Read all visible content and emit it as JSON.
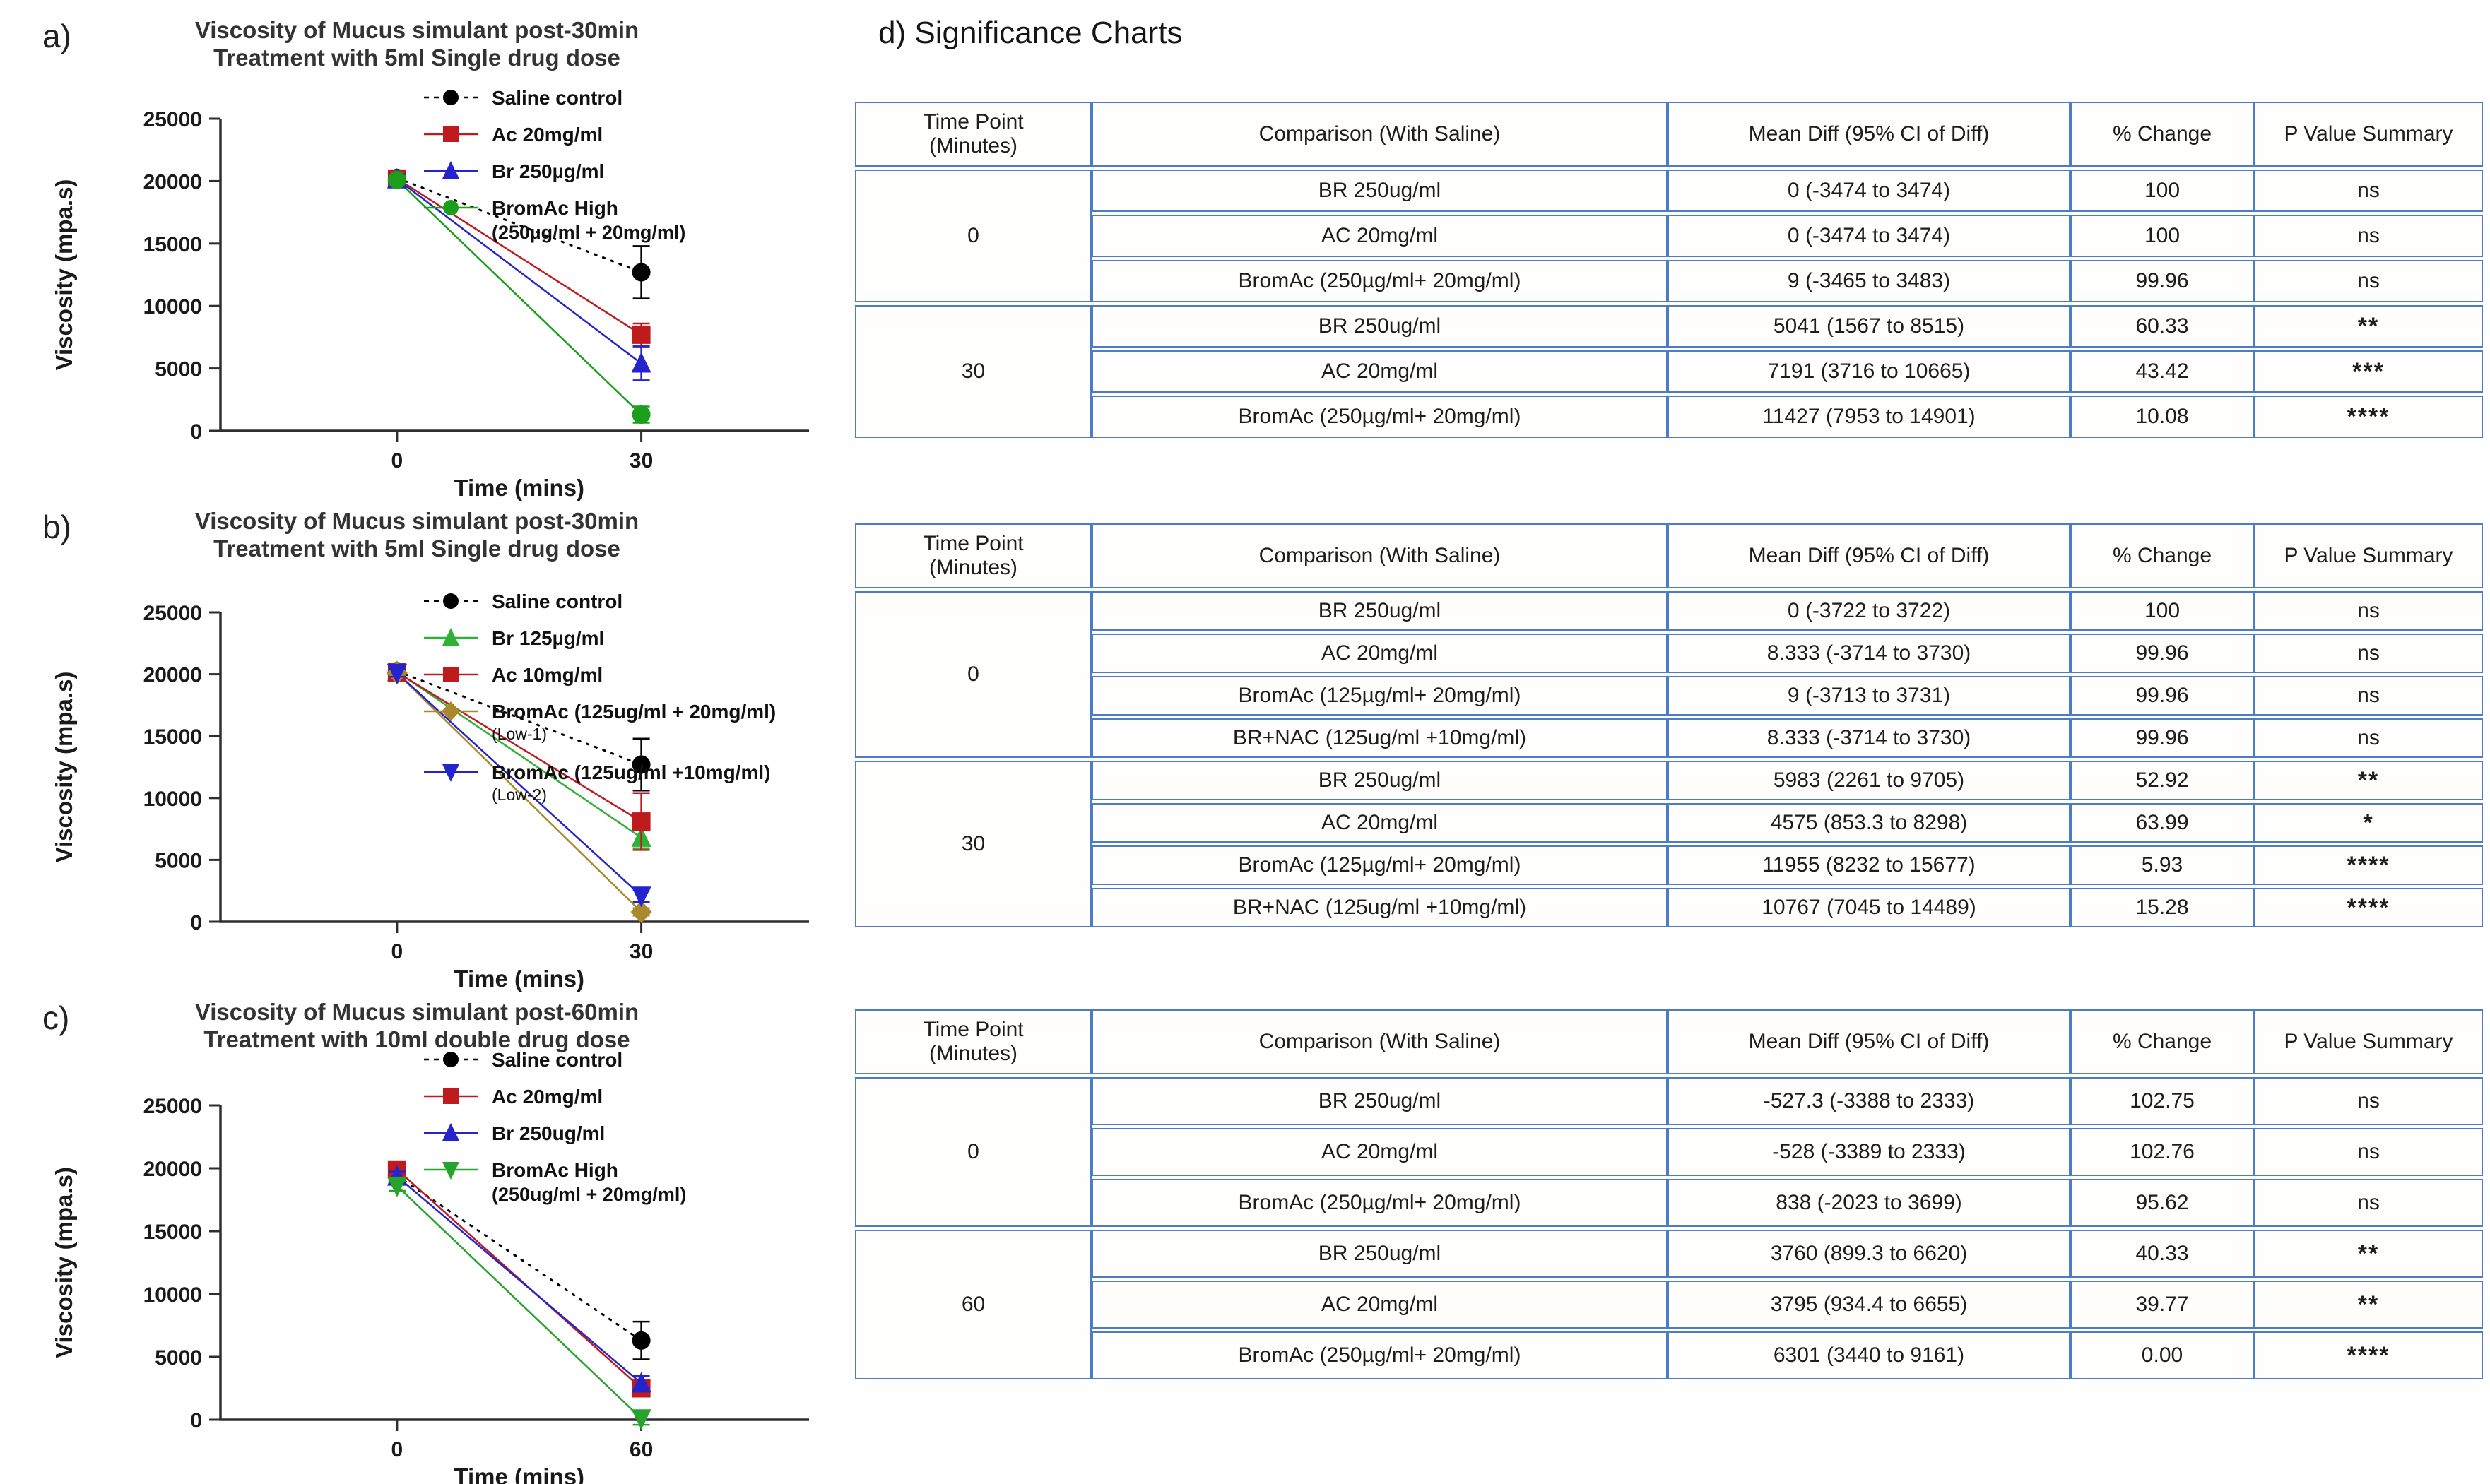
{
  "significance": {
    "heading": "d) Significance Charts"
  },
  "chart_data": {
    "charts": [
      {
        "type": "line",
        "panel_label": "a)",
        "title": [
          "Viscosity of Mucus simulant post-30min",
          "Treatment with 5ml Single drug dose"
        ],
        "ylabel": "Viscosity (mpa.s)",
        "xlabel": "Time (mins)",
        "ylim": [
          0,
          25000
        ],
        "yticks": [
          0,
          5000,
          10000,
          15000,
          20000,
          25000
        ],
        "xticks": [
          "0",
          "30"
        ],
        "grid": false,
        "legend_position": "top-right-inside",
        "series": [
          {
            "name": [
              "Saline control"
            ],
            "color": "#000000",
            "marker": "circle",
            "dashed": true,
            "values": [
              20250,
              12700
            ],
            "err": [
              400,
              2100
            ]
          },
          {
            "name": [
              "Ac 20mg/ml"
            ],
            "color": "#bf1a1d",
            "marker": "square",
            "dashed": false,
            "values": [
              20200,
              7700
            ],
            "err": [
              400,
              900
            ]
          },
          {
            "name": [
              "Br 250µg/ml"
            ],
            "color": "#2424cc",
            "marker": "triangle-up",
            "dashed": false,
            "values": [
              20150,
              5400
            ],
            "err": [
              400,
              1350
            ]
          },
          {
            "name": [
              "BromAc High",
              "(250µg/ml + 20mg/ml)"
            ],
            "color": "#1b9e1b",
            "marker": "circle",
            "dashed": false,
            "values": [
              20100,
              1300
            ],
            "err": [
              300,
              650
            ]
          }
        ]
      },
      {
        "type": "line",
        "panel_label": "b)",
        "title": [
          "Viscosity of Mucus simulant post-30min",
          "Treatment with 5ml Single drug dose"
        ],
        "ylabel": "Viscosity (mpa.s)",
        "xlabel": "Time (mins)",
        "ylim": [
          0,
          25000
        ],
        "yticks": [
          0,
          5000,
          10000,
          15000,
          20000,
          25000
        ],
        "xticks": [
          "0",
          "30"
        ],
        "grid": false,
        "legend_position": "right-inside",
        "series": [
          {
            "name": [
              "Saline control"
            ],
            "color": "#000000",
            "marker": "circle",
            "dashed": true,
            "values": [
              20250,
              12700
            ],
            "err": [
              400,
              2100
            ]
          },
          {
            "name": [
              "Br 125µg/ml"
            ],
            "color": "#2eb135",
            "marker": "triangle-up",
            "dashed": false,
            "values": [
              20200,
              6800
            ],
            "err": [
              300,
              850
            ]
          },
          {
            "name": [
              "Ac 10mg/ml"
            ],
            "color": "#bf1a1d",
            "marker": "square",
            "dashed": false,
            "values": [
              20150,
              8100
            ],
            "err": [
              300,
              2300
            ]
          },
          {
            "name": [
              "BromAc (125ug/ml + 20mg/ml)",
              "(Low-1)"
            ],
            "color": "#a9892c",
            "marker": "diamond",
            "dashed": false,
            "values": [
              20100,
              800
            ],
            "err": [
              300,
              300
            ]
          },
          {
            "name": [
              "BromAc (125ug/ml +10mg/ml)",
              "(Low-2)"
            ],
            "color": "#2424cc",
            "marker": "triangle-down",
            "dashed": false,
            "values": [
              20100,
              2100
            ],
            "err": [
              300,
              500
            ]
          }
        ]
      },
      {
        "type": "line",
        "panel_label": "c)",
        "title": [
          "Viscosity of Mucus simulant post-60min",
          "Treatment with 10ml double drug dose"
        ],
        "ylabel": "Viscosity (mpa.s)",
        "xlabel": "Time (mins)",
        "ylim": [
          0,
          25000
        ],
        "yticks": [
          0,
          5000,
          10000,
          15000,
          20000,
          25000
        ],
        "xticks": [
          "0",
          "60"
        ],
        "grid": false,
        "legend_position": "top-right-inside",
        "series": [
          {
            "name": [
              "Saline control"
            ],
            "color": "#000000",
            "marker": "circle",
            "dashed": true,
            "values": [
              19400,
              6300
            ],
            "err": [
              500,
              1500
            ]
          },
          {
            "name": [
              "Ac 20mg/ml"
            ],
            "color": "#bf1a1d",
            "marker": "square",
            "dashed": false,
            "values": [
              19900,
              2500
            ],
            "err": [
              400,
              450
            ]
          },
          {
            "name": [
              "Br 250ug/ml"
            ],
            "color": "#2424cc",
            "marker": "triangle-up",
            "dashed": false,
            "values": [
              19350,
              2900
            ],
            "err": [
              400,
              600
            ]
          },
          {
            "name": [
              "BromAc High",
              "(250ug/ml + 20mg/ml)"
            ],
            "color": "#27a32c",
            "marker": "triangle-down",
            "dashed": false,
            "values": [
              18600,
              100
            ],
            "err": [
              400,
              500
            ]
          }
        ]
      }
    ],
    "tables": [
      {
        "type": "table",
        "columns": [
          "Time Point\n(Minutes)",
          "Comparison (With Saline)",
          "Mean Diff (95% CI of Diff)",
          "% Change",
          "P Value  Summary"
        ],
        "groups": [
          {
            "time": "0",
            "rows": [
              {
                "comparison": "BR 250ug/ml",
                "mean_diff": "0 (-3474 to 3474)",
                "pct_change": "100",
                "p_summary": "ns"
              },
              {
                "comparison": "AC 20mg/ml",
                "mean_diff": "0 (-3474 to 3474)",
                "pct_change": "100",
                "p_summary": "ns"
              },
              {
                "comparison": "BromAc (250µg/ml+ 20mg/ml)",
                "mean_diff": "9 (-3465 to 3483)",
                "pct_change": "99.96",
                "p_summary": "ns"
              }
            ]
          },
          {
            "time": "30",
            "rows": [
              {
                "comparison": "BR 250ug/ml",
                "mean_diff": "5041 (1567 to 8515)",
                "pct_change": "60.33",
                "p_summary": "**"
              },
              {
                "comparison": "AC 20mg/ml",
                "mean_diff": "7191 (3716 to 10665)",
                "pct_change": "43.42",
                "p_summary": "***"
              },
              {
                "comparison": "BromAc (250µg/ml+ 20mg/ml)",
                "mean_diff": "11427 (7953 to 14901)",
                "pct_change": "10.08",
                "p_summary": "****"
              }
            ]
          }
        ]
      },
      {
        "type": "table",
        "columns": [
          "Time Point\n(Minutes)",
          "Comparison (With Saline)",
          "Mean Diff (95% CI of Diff)",
          "% Change",
          "P Value  Summary"
        ],
        "groups": [
          {
            "time": "0",
            "rows": [
              {
                "comparison": "BR 250ug/ml",
                "mean_diff": "0 (-3722 to 3722)",
                "pct_change": "100",
                "p_summary": "ns"
              },
              {
                "comparison": "AC 20mg/ml",
                "mean_diff": "8.333 (-3714 to 3730)",
                "pct_change": "99.96",
                "p_summary": "ns"
              },
              {
                "comparison": "BromAc (125µg/ml+ 20mg/ml)",
                "mean_diff": "9 (-3713 to 3731)",
                "pct_change": "99.96",
                "p_summary": "ns"
              },
              {
                "comparison": "BR+NAC (125ug/ml +10mg/ml)",
                "mean_diff": "8.333 (-3714 to 3730)",
                "pct_change": "99.96",
                "p_summary": "ns"
              }
            ]
          },
          {
            "time": "30",
            "rows": [
              {
                "comparison": "BR 250ug/ml",
                "mean_diff": "5983 (2261 to 9705)",
                "pct_change": "52.92",
                "p_summary": "**"
              },
              {
                "comparison": "AC 20mg/ml",
                "mean_diff": "4575 (853.3 to 8298)",
                "pct_change": "63.99",
                "p_summary": "*"
              },
              {
                "comparison": "BromAc (125µg/ml+ 20mg/ml)",
                "mean_diff": "11955 (8232 to 15677)",
                "pct_change": "5.93",
                "p_summary": "****"
              },
              {
                "comparison": "BR+NAC (125ug/ml +10mg/ml)",
                "mean_diff": "10767 (7045 to 14489)",
                "pct_change": "15.28",
                "p_summary": "****"
              }
            ]
          }
        ]
      },
      {
        "type": "table",
        "columns": [
          "Time Point\n(Minutes)",
          "Comparison (With Saline)",
          "Mean Diff (95% CI of Diff)",
          "% Change",
          "P Value  Summary"
        ],
        "groups": [
          {
            "time": "0",
            "rows": [
              {
                "comparison": "BR 250ug/ml",
                "mean_diff": "-527.3 (-3388 to 2333)",
                "pct_change": "102.75",
                "p_summary": "ns"
              },
              {
                "comparison": "AC 20mg/ml",
                "mean_diff": "-528 (-3389 to 2333)",
                "pct_change": "102.76",
                "p_summary": "ns"
              },
              {
                "comparison": "BromAc (250µg/ml+ 20mg/ml)",
                "mean_diff": "838 (-2023 to 3699)",
                "pct_change": "95.62",
                "p_summary": "ns"
              }
            ]
          },
          {
            "time": "60",
            "rows": [
              {
                "comparison": "BR 250ug/ml",
                "mean_diff": "3760 (899.3 to 6620)",
                "pct_change": "40.33",
                "p_summary": "**"
              },
              {
                "comparison": "AC 20mg/ml",
                "mean_diff": "3795 (934.4 to 6655)",
                "pct_change": "39.77",
                "p_summary": "**"
              },
              {
                "comparison": "BromAc (250µg/ml+ 20mg/ml)",
                "mean_diff": "6301 (3440 to 9161)",
                "pct_change": "0.00",
                "p_summary": "****"
              }
            ]
          }
        ]
      }
    ],
    "colors": {
      "table_border": "#4a7cc7",
      "axis": "#2e2e2e"
    }
  }
}
